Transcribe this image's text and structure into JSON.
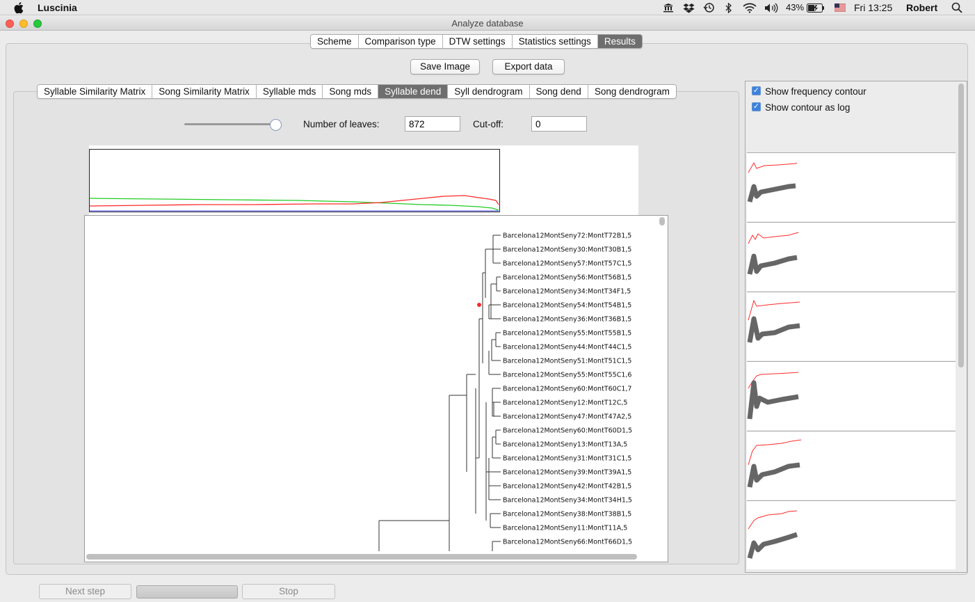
{
  "menubar": {
    "app_name": "Luscinia",
    "battery": "43%",
    "clock": "Fri 13:25",
    "user": "Robert"
  },
  "window": {
    "title": "Analyze database"
  },
  "top_tabs": [
    {
      "label": "Scheme",
      "selected": false
    },
    {
      "label": "Comparison type",
      "selected": false
    },
    {
      "label": "DTW settings",
      "selected": false
    },
    {
      "label": "Statistics settings",
      "selected": false
    },
    {
      "label": "Results",
      "selected": true
    }
  ],
  "actions": {
    "save_image": "Save Image",
    "export_data": "Export data"
  },
  "result_tabs": [
    {
      "label": "Syllable Similarity Matrix",
      "selected": false
    },
    {
      "label": "Song Similarity Matrix",
      "selected": false
    },
    {
      "label": "Syllable mds",
      "selected": false
    },
    {
      "label": "Song mds",
      "selected": false
    },
    {
      "label": "Syllable dend",
      "selected": true
    },
    {
      "label": "Syll dendrogram",
      "selected": false
    },
    {
      "label": "Song dend",
      "selected": false
    },
    {
      "label": "Song dendrogram",
      "selected": false
    }
  ],
  "controls": {
    "slider_level": 1.0,
    "leaves_label": "Number of leaves:",
    "leaves_value": "872",
    "cutoff_label": "Cut-off:",
    "cutoff_value": "0"
  },
  "leaves": [
    "Barcelona12MontSeny72:MontT72B1,5",
    "Barcelona12MontSeny30:MontT30B1,5",
    "Barcelona12MontSeny57:MontT57C1,5",
    "Barcelona12MontSeny56:MontT56B1,5",
    "Barcelona12MontSeny34:MontT34F1,5",
    "Barcelona12MontSeny54:MontT54B1,5",
    "Barcelona12MontSeny36:MontT36B1,5",
    "Barcelona12MontSeny55:MontT55B1,5",
    "Barcelona12MontSeny44:MontT44C1,5",
    "Barcelona12MontSeny51:MontT51C1,5",
    "Barcelona12MontSeny55:MontT55C1,6",
    "Barcelona12MontSeny60:MontT60C1,7",
    "Barcelona12MontSeny12:MontT12C,5",
    "Barcelona12MontSeny47:MontT47A2,5",
    "Barcelona12MontSeny60:MontT60D1,5",
    "Barcelona12MontSeny13:MontT13A,5",
    "Barcelona12MontSeny31:MontT31C1,5",
    "Barcelona12MontSeny39:MontT39A1,5",
    "Barcelona12MontSeny42:MontT42B1,5",
    "Barcelona12MontSeny34:MontT34H1,5",
    "Barcelona12MontSeny38:MontT38B1,5",
    "Barcelona12MontSeny11:MontT11A,5",
    "Barcelona12MontSeny66:MontT66D1,5"
  ],
  "options": {
    "show_frequency_contour": "Show frequency contour",
    "show_contour_as_log": "Show contour as log",
    "frequency_checked": true,
    "log_checked": true
  },
  "footer": {
    "next_step": "Next step",
    "stop": "Stop"
  },
  "colors": {
    "selected_tab": "#6e6e6e",
    "contour_red": "#ff2a2a",
    "contour_gray": "#666666",
    "series_green": "#22cc22",
    "series_blue": "#3b3bff"
  }
}
